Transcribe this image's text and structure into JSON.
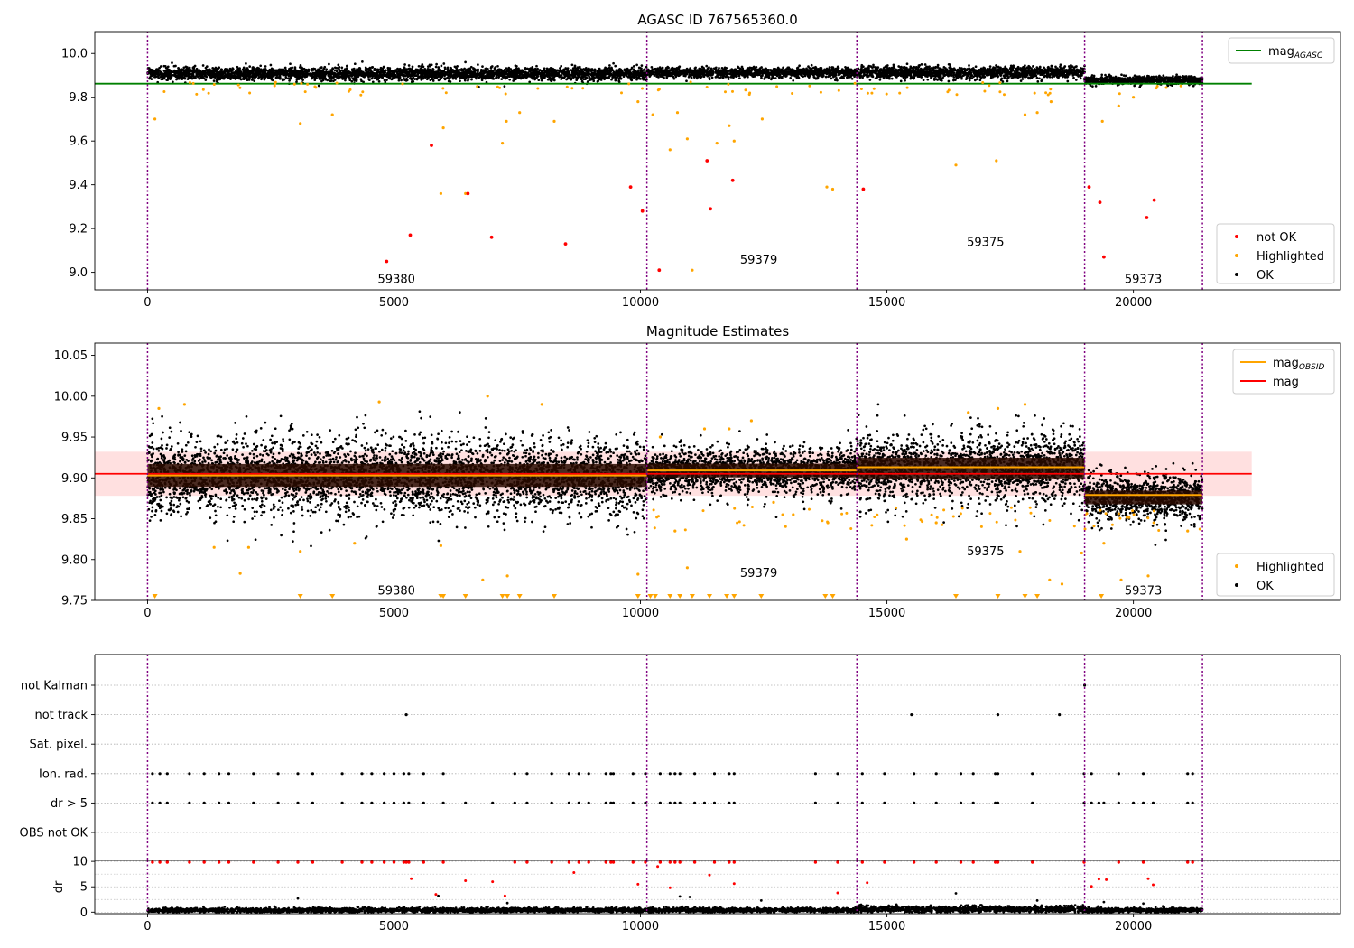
{
  "chart_data": [
    {
      "type": "scatter",
      "title": "AGASC ID 767565360.0",
      "xlim": [
        -1070,
        24200
      ],
      "ylim": [
        8.92,
        10.1
      ],
      "xticks": [
        0,
        5000,
        10000,
        15000,
        20000
      ],
      "yticks": [
        9.0,
        9.2,
        9.4,
        9.6,
        9.8,
        10.0
      ],
      "ytick_labels": [
        "9.0",
        "9.2",
        "9.4",
        "9.6",
        "9.8",
        "10.0"
      ],
      "obs_boundaries": [
        0,
        10130,
        14390,
        19010,
        21400
      ],
      "obs_labels": [
        {
          "x": 5050,
          "y": 8.95,
          "text": "59380"
        },
        {
          "x": 12400,
          "y": 9.04,
          "text": "59379"
        },
        {
          "x": 17000,
          "y": 9.12,
          "text": "59375"
        },
        {
          "x": 20200,
          "y": 8.95,
          "text": "59373"
        }
      ],
      "mag_agasc": {
        "value": 9.862,
        "x": [
          -1070,
          22400
        ],
        "color": "#008000"
      },
      "ok_band": {
        "segments": [
          {
            "x": [
              0,
              10130
            ],
            "center": 9.908,
            "spread": 0.032
          },
          {
            "x": [
              10130,
              14390
            ],
            "center": 9.913,
            "spread": 0.025
          },
          {
            "x": [
              14390,
              19010
            ],
            "center": 9.913,
            "spread": 0.03
          },
          {
            "x": [
              19010,
              21400
            ],
            "center": 9.878,
            "spread": 0.02
          }
        ]
      },
      "not_ok_points": [
        {
          "x": 4850,
          "y": 9.05
        },
        {
          "x": 5330,
          "y": 9.17
        },
        {
          "x": 5760,
          "y": 9.58
        },
        {
          "x": 6500,
          "y": 9.36
        },
        {
          "x": 6980,
          "y": 9.16
        },
        {
          "x": 8480,
          "y": 9.13
        },
        {
          "x": 9800,
          "y": 9.39
        },
        {
          "x": 10040,
          "y": 9.28
        },
        {
          "x": 10380,
          "y": 9.01
        },
        {
          "x": 11350,
          "y": 9.51
        },
        {
          "x": 11420,
          "y": 9.29
        },
        {
          "x": 11870,
          "y": 9.42
        },
        {
          "x": 14520,
          "y": 9.38
        },
        {
          "x": 19100,
          "y": 9.39
        },
        {
          "x": 19320,
          "y": 9.32
        },
        {
          "x": 19400,
          "y": 9.07
        },
        {
          "x": 20270,
          "y": 9.25
        },
        {
          "x": 20420,
          "y": 9.33
        }
      ],
      "highlighted_points": [
        {
          "x": 150,
          "y": 9.7
        },
        {
          "x": 3100,
          "y": 9.68
        },
        {
          "x": 3750,
          "y": 9.72
        },
        {
          "x": 5950,
          "y": 9.36
        },
        {
          "x": 6000,
          "y": 9.66
        },
        {
          "x": 6450,
          "y": 9.36
        },
        {
          "x": 7200,
          "y": 9.59
        },
        {
          "x": 7280,
          "y": 9.69
        },
        {
          "x": 7550,
          "y": 9.73
        },
        {
          "x": 8250,
          "y": 9.69
        },
        {
          "x": 9950,
          "y": 9.78
        },
        {
          "x": 10250,
          "y": 9.72
        },
        {
          "x": 10600,
          "y": 9.56
        },
        {
          "x": 10750,
          "y": 9.73
        },
        {
          "x": 10950,
          "y": 9.61
        },
        {
          "x": 11050,
          "y": 9.01
        },
        {
          "x": 11550,
          "y": 9.59
        },
        {
          "x": 11800,
          "y": 9.67
        },
        {
          "x": 11900,
          "y": 9.6
        },
        {
          "x": 12470,
          "y": 9.7
        },
        {
          "x": 13780,
          "y": 9.39
        },
        {
          "x": 13900,
          "y": 9.38
        },
        {
          "x": 16400,
          "y": 9.49
        },
        {
          "x": 17220,
          "y": 9.51
        },
        {
          "x": 17800,
          "y": 9.72
        },
        {
          "x": 18050,
          "y": 9.73
        },
        {
          "x": 18330,
          "y": 9.78
        },
        {
          "x": 19370,
          "y": 9.69
        },
        {
          "x": 19700,
          "y": 9.76
        },
        {
          "x": 20000,
          "y": 9.8
        }
      ],
      "legend_top": {
        "position": "upper-right",
        "entries": [
          {
            "label": "mag",
            "sub": "AGASC",
            "color": "#008000",
            "marker": "line"
          }
        ]
      },
      "legend_bottom": {
        "position": "lower-right",
        "entries": [
          {
            "label": "not OK",
            "color": "#ff0000",
            "marker": "dot"
          },
          {
            "label": "Highlighted",
            "color": "#ffa500",
            "marker": "dot"
          },
          {
            "label": "OK",
            "color": "#000000",
            "marker": "dot"
          }
        ]
      }
    },
    {
      "type": "scatter",
      "title": "Magnitude Estimates",
      "xlim": [
        -1070,
        24200
      ],
      "ylim": [
        9.75,
        10.065
      ],
      "xticks": [
        0,
        5000,
        10000,
        15000,
        20000
      ],
      "yticks": [
        9.75,
        9.8,
        9.85,
        9.9,
        9.95,
        10.0,
        10.05
      ],
      "ytick_labels": [
        "9.75",
        "9.80",
        "9.85",
        "9.90",
        "9.95",
        "10.00",
        "10.05"
      ],
      "obs_boundaries": [
        0,
        10130,
        14390,
        19010,
        21400
      ],
      "obs_labels": [
        {
          "x": 5050,
          "y": 9.757,
          "text": "59380"
        },
        {
          "x": 12400,
          "y": 9.779,
          "text": "59379"
        },
        {
          "x": 17000,
          "y": 9.805,
          "text": "59375"
        },
        {
          "x": 20200,
          "y": 9.757,
          "text": "59373"
        }
      ],
      "mag": {
        "value": 9.905,
        "x": [
          -1070,
          22400
        ],
        "band": [
          9.878,
          9.932
        ],
        "color": "#ff0000"
      },
      "mag_obsid": [
        {
          "x": [
            0,
            10130
          ],
          "value": 9.903
        },
        {
          "x": [
            10130,
            14390
          ],
          "value": 9.909
        },
        {
          "x": [
            14390,
            19010
          ],
          "value": 9.913
        },
        {
          "x": [
            19010,
            21400
          ],
          "value": 9.879
        }
      ],
      "ok_band": {
        "segments": [
          {
            "x": [
              0,
              10130
            ],
            "center": 9.903,
            "spread": 0.05
          },
          {
            "x": [
              10130,
              14390
            ],
            "center": 9.909,
            "spread": 0.03
          },
          {
            "x": [
              14390,
              19010
            ],
            "center": 9.912,
            "spread": 0.045
          },
          {
            "x": [
              19010,
              21400
            ],
            "center": 9.876,
            "spread": 0.03
          }
        ]
      },
      "highlighted_points": [
        {
          "x": 230,
          "y": 9.985
        },
        {
          "x": 750,
          "y": 9.99
        },
        {
          "x": 1350,
          "y": 9.815
        },
        {
          "x": 1880,
          "y": 9.783
        },
        {
          "x": 2050,
          "y": 9.815
        },
        {
          "x": 3100,
          "y": 9.81
        },
        {
          "x": 4200,
          "y": 9.82
        },
        {
          "x": 4700,
          "y": 9.993
        },
        {
          "x": 5950,
          "y": 9.817
        },
        {
          "x": 6800,
          "y": 9.775
        },
        {
          "x": 6900,
          "y": 10.0
        },
        {
          "x": 7300,
          "y": 9.78
        },
        {
          "x": 8000,
          "y": 9.99
        },
        {
          "x": 9950,
          "y": 9.782
        },
        {
          "x": 10400,
          "y": 9.95
        },
        {
          "x": 10700,
          "y": 9.835
        },
        {
          "x": 10950,
          "y": 9.79
        },
        {
          "x": 11300,
          "y": 9.96
        },
        {
          "x": 11800,
          "y": 9.96
        },
        {
          "x": 12250,
          "y": 9.97
        },
        {
          "x": 12700,
          "y": 9.87
        },
        {
          "x": 13100,
          "y": 9.855
        },
        {
          "x": 13800,
          "y": 9.845
        },
        {
          "x": 15400,
          "y": 9.825
        },
        {
          "x": 16000,
          "y": 9.845
        },
        {
          "x": 16650,
          "y": 9.98
        },
        {
          "x": 17250,
          "y": 9.985
        },
        {
          "x": 17700,
          "y": 9.81
        },
        {
          "x": 17800,
          "y": 9.99
        },
        {
          "x": 18300,
          "y": 9.775
        },
        {
          "x": 18550,
          "y": 9.77
        },
        {
          "x": 18950,
          "y": 9.808
        },
        {
          "x": 19400,
          "y": 9.82
        },
        {
          "x": 19750,
          "y": 9.775
        },
        {
          "x": 20300,
          "y": 9.78
        },
        {
          "x": 21100,
          "y": 9.835
        }
      ],
      "highlighted_clipped_x": [
        150,
        3100,
        3750,
        5950,
        6000,
        6450,
        7200,
        7300,
        7550,
        8250,
        9950,
        10200,
        10300,
        10600,
        10800,
        11050,
        11400,
        11750,
        11900,
        12450,
        13750,
        13900,
        16400,
        17250,
        17800,
        18050,
        19350
      ],
      "legend_top": {
        "position": "upper-right",
        "entries": [
          {
            "label": "mag",
            "sub": "OBSID",
            "color": "#ffa500",
            "marker": "line"
          },
          {
            "label": "mag",
            "color": "#ff0000",
            "marker": "line"
          }
        ]
      },
      "legend_bottom": {
        "position": "lower-right",
        "entries": [
          {
            "label": "Highlighted",
            "color": "#ffa500",
            "marker": "dot"
          },
          {
            "label": "OK",
            "color": "#000000",
            "marker": "dot"
          }
        ]
      }
    },
    {
      "type": "scatter",
      "title": "",
      "xlim": [
        -1070,
        24200
      ],
      "obs_boundaries": [
        0,
        10130,
        14390,
        19010,
        21400
      ],
      "flag_rows": [
        "not Kalman",
        "not track",
        "Sat. pixel.",
        "Ion. rad.",
        "dr > 5",
        "OBS not OK"
      ],
      "flag_points": {
        "not Kalman": [
          19010
        ],
        "not track": [
          5250,
          15500,
          17250,
          18500
        ],
        "Sat. pixel.": [],
        "Ion. rad.": [
          100,
          250,
          400,
          850,
          1150,
          1450,
          1650,
          2150,
          2650,
          3050,
          3350,
          3950,
          4350,
          4550,
          4800,
          5000,
          5200,
          5300,
          5600,
          6000,
          7450,
          7700,
          8200,
          8550,
          8750,
          8950,
          9300,
          9400,
          9450,
          9850,
          10100,
          10400,
          10600,
          10700,
          10800,
          11100,
          11500,
          11800,
          11900,
          13550,
          14000,
          14500,
          14950,
          15550,
          16000,
          16500,
          16750,
          17200,
          17250,
          17950,
          19000,
          19150,
          19700,
          20200,
          21100,
          21200
        ],
        "dr > 5": [
          100,
          250,
          400,
          850,
          1150,
          1450,
          1650,
          2150,
          2650,
          3050,
          3350,
          3950,
          4350,
          4550,
          4800,
          5000,
          5200,
          5300,
          5600,
          6000,
          6450,
          7000,
          7450,
          7700,
          8200,
          8550,
          8750,
          8950,
          9300,
          9400,
          9450,
          9850,
          10100,
          10400,
          10600,
          10700,
          10800,
          11100,
          11300,
          11500,
          11800,
          11900,
          13550,
          14000,
          14500,
          14950,
          15550,
          16000,
          16500,
          16750,
          17200,
          17250,
          17950,
          19000,
          19150,
          19300,
          19400,
          19700,
          20000,
          20200,
          20400,
          21100,
          21200
        ],
        "OBS not OK": []
      }
    },
    {
      "type": "scatter",
      "title": "",
      "xlim": [
        -1070,
        24200
      ],
      "ylim": [
        -0.3,
        10.2
      ],
      "yticks": [
        0,
        5,
        10
      ],
      "xticks": [
        0,
        5000,
        10000,
        15000,
        20000
      ],
      "ylabel": "dr",
      "obs_boundaries": [
        0,
        10130,
        14390,
        19010,
        21400
      ],
      "ok_band": {
        "segments": [
          {
            "x": [
              0,
              10130
            ],
            "center": 0.4,
            "spread": 0.5
          },
          {
            "x": [
              10130,
              14390
            ],
            "center": 0.4,
            "spread": 0.5
          },
          {
            "x": [
              14390,
              19010
            ],
            "center": 0.6,
            "spread": 0.7
          },
          {
            "x": [
              19010,
              21400
            ],
            "center": 0.4,
            "spread": 0.5
          }
        ]
      },
      "red_top_x": [
        100,
        250,
        400,
        850,
        1150,
        1450,
        1650,
        2150,
        2650,
        3050,
        3350,
        3950,
        4350,
        4550,
        4800,
        5000,
        5200,
        5250,
        5300,
        5600,
        6000,
        7450,
        7700,
        8200,
        8550,
        8750,
        8950,
        9300,
        9400,
        9450,
        9850,
        10100,
        10400,
        10600,
        10700,
        10800,
        11100,
        11500,
        11800,
        11900,
        13550,
        14000,
        14500,
        14950,
        15550,
        16000,
        16500,
        16750,
        17200,
        17250,
        17950,
        19000,
        19700,
        20200,
        21100,
        21200
      ],
      "red_mid_points": [
        {
          "x": 5350,
          "y": 6.6
        },
        {
          "x": 5850,
          "y": 3.5
        },
        {
          "x": 6450,
          "y": 6.2
        },
        {
          "x": 7000,
          "y": 6.0
        },
        {
          "x": 7250,
          "y": 3.2
        },
        {
          "x": 8650,
          "y": 7.8
        },
        {
          "x": 9950,
          "y": 5.5
        },
        {
          "x": 10350,
          "y": 9.0
        },
        {
          "x": 10600,
          "y": 4.8
        },
        {
          "x": 11400,
          "y": 7.3
        },
        {
          "x": 11900,
          "y": 5.6
        },
        {
          "x": 14000,
          "y": 3.8
        },
        {
          "x": 14600,
          "y": 5.8
        },
        {
          "x": 19150,
          "y": 5.1
        },
        {
          "x": 19300,
          "y": 6.5
        },
        {
          "x": 19450,
          "y": 6.4
        },
        {
          "x": 20300,
          "y": 6.6
        },
        {
          "x": 20400,
          "y": 5.4
        }
      ],
      "black_outliers": [
        {
          "x": 3050,
          "y": 2.7
        },
        {
          "x": 7300,
          "y": 1.8
        },
        {
          "x": 12450,
          "y": 2.3
        },
        {
          "x": 16400,
          "y": 3.7
        },
        {
          "x": 18050,
          "y": 2.3
        },
        {
          "x": 20200,
          "y": 1.7
        },
        {
          "x": 5900,
          "y": 3.2
        },
        {
          "x": 10800,
          "y": 3.1
        },
        {
          "x": 11000,
          "y": 3.0
        },
        {
          "x": 19400,
          "y": 2.0
        }
      ]
    }
  ]
}
